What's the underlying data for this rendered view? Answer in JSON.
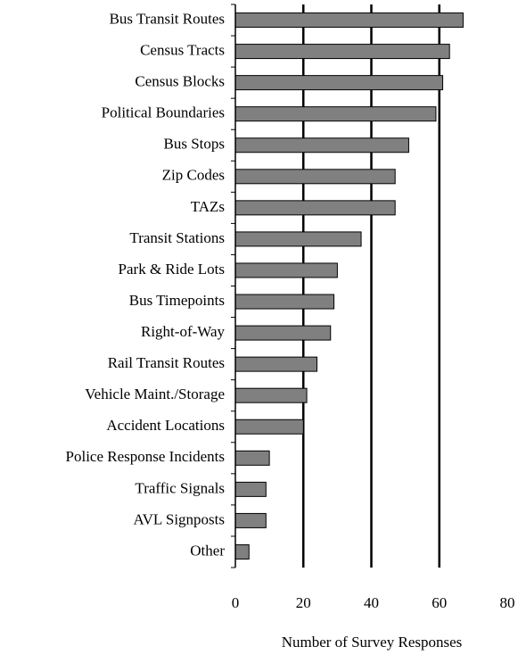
{
  "chart_data": {
    "type": "bar",
    "orientation": "horizontal",
    "categories": [
      "Bus Transit Routes",
      "Census Tracts",
      "Census Blocks",
      "Political Boundaries",
      "Bus Stops",
      "Zip Codes",
      "TAZs",
      "Transit Stations",
      "Park & Ride Lots",
      "Bus Timepoints",
      "Right-of-Way",
      "Rail Transit Routes",
      "Vehicle Maint./Storage",
      "Accident Locations",
      "Police Response Incidents",
      "Traffic Signals",
      "AVL Signposts",
      "Other"
    ],
    "values": [
      67,
      63,
      61,
      59,
      51,
      47,
      47,
      37,
      30,
      29,
      28,
      24,
      21,
      20,
      10,
      9,
      9,
      4
    ],
    "color": "#808080",
    "xlabel": "Number of Survey Responses",
    "xlim": [
      0,
      80
    ],
    "xticks": [
      0,
      20,
      40,
      60,
      80
    ],
    "grid": true
  }
}
